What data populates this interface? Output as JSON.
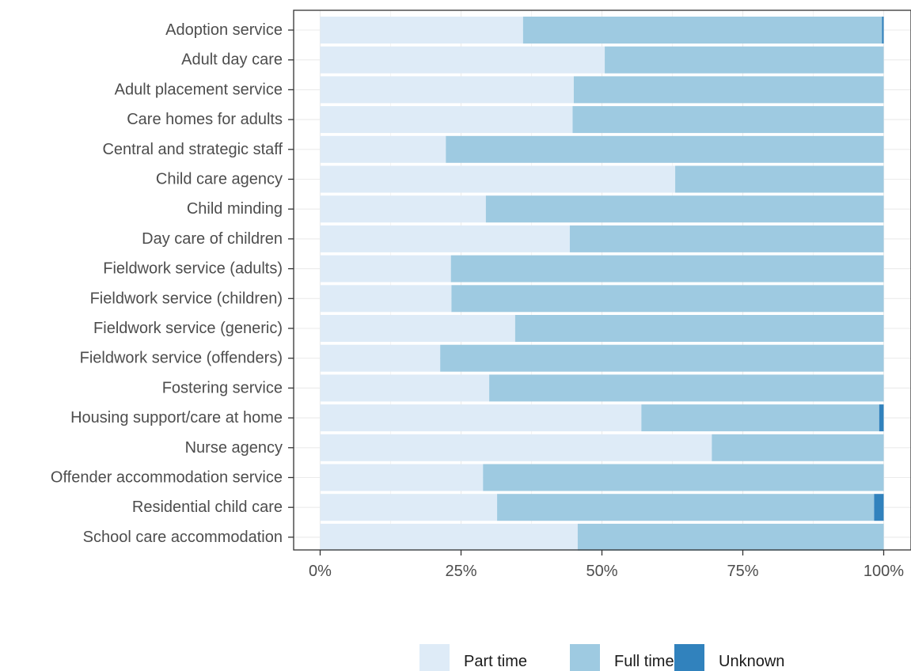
{
  "chart_data": {
    "type": "bar",
    "orientation": "horizontal",
    "stacked": "percent",
    "categories": [
      "Adoption service",
      "Adult day care",
      "Adult placement service",
      "Care homes for adults",
      "Central and strategic staff",
      "Child care agency",
      "Child minding",
      "Day care of children",
      "Fieldwork service (adults)",
      "Fieldwork service (children)",
      "Fieldwork service (generic)",
      "Fieldwork service (offenders)",
      "Fostering service",
      "Housing support/care at home",
      "Nurse agency",
      "Offender accommodation service",
      "Residential child care",
      "School care accommodation"
    ],
    "series": [
      {
        "name": "Part time",
        "color": "#deebf7",
        "values": [
          36,
          50.5,
          45,
          44.8,
          22.3,
          63,
          29.4,
          44.3,
          23.2,
          23.3,
          34.6,
          21.3,
          30,
          57,
          69.5,
          28.9,
          31.4,
          45.7
        ]
      },
      {
        "name": "Full time",
        "color": "#9ecae1",
        "values": [
          63.7,
          49.5,
          55,
          55.2,
          77.7,
          37,
          70.6,
          55.7,
          76.8,
          76.7,
          65.4,
          78.7,
          70,
          42.2,
          30.5,
          71.1,
          66.9,
          54.3
        ]
      },
      {
        "name": "Unknown",
        "color": "#3182bd",
        "values": [
          0.3,
          0,
          0,
          0,
          0,
          0,
          0,
          0,
          0,
          0,
          0,
          0,
          0,
          0.8,
          0,
          0,
          1.7,
          0
        ]
      }
    ],
    "x_ticks": [
      "0%",
      "25%",
      "50%",
      "75%",
      "100%"
    ],
    "xlim": [
      0,
      100
    ],
    "grid": true,
    "legend_position": "bottom"
  }
}
